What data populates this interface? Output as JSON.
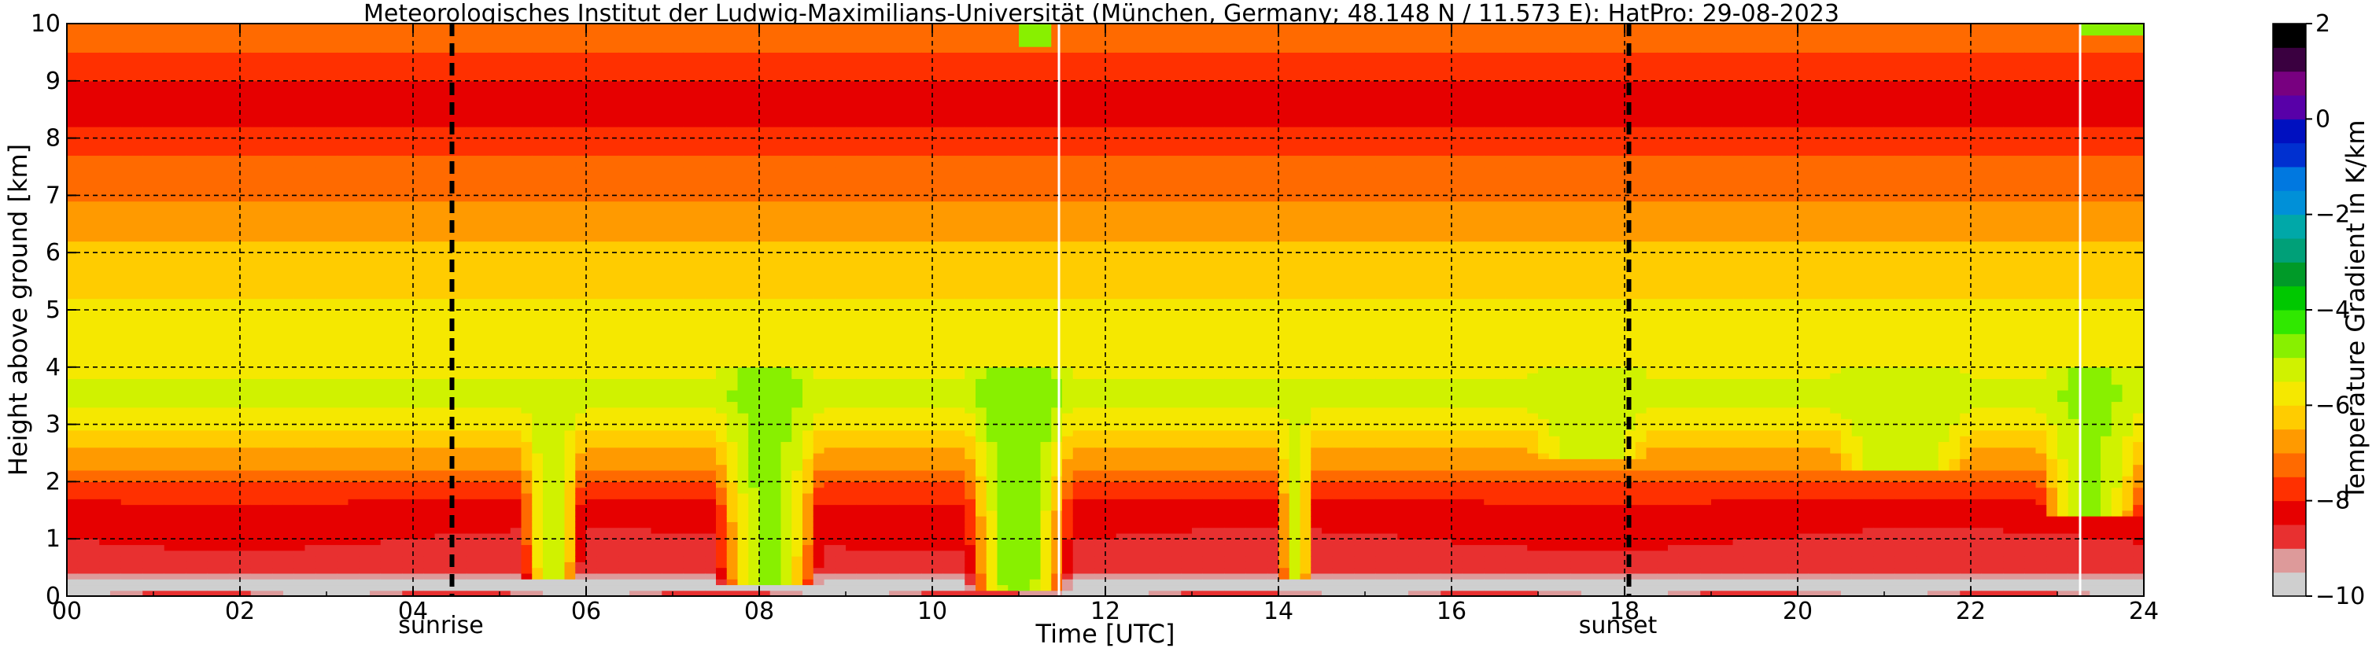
{
  "chart_data": {
    "type": "heatmap",
    "title": "Meteorologisches Institut der Ludwig-Maximilians-Universität (München, Germany; 48.148 N / 11.573 E):    HatPro: 29-08-2023",
    "xlabel": "Time [UTC]",
    "ylabel": "Height above ground [km]",
    "xlim": [
      0,
      24
    ],
    "ylim": [
      0,
      10
    ],
    "x_ticks": [
      0,
      2,
      4,
      6,
      8,
      10,
      12,
      14,
      16,
      18,
      20,
      22,
      24
    ],
    "x_tick_labels": [
      "00",
      "02",
      "04",
      "06",
      "08",
      "10",
      "12",
      "14",
      "16",
      "18",
      "20",
      "22",
      "24"
    ],
    "y_ticks": [
      0,
      1,
      2,
      3,
      4,
      5,
      6,
      7,
      8,
      9,
      10
    ],
    "y_tick_labels": [
      "0",
      "1",
      "2",
      "3",
      "4",
      "5",
      "6",
      "7",
      "8",
      "9",
      "10"
    ],
    "x_minor_ticks": [
      1,
      3,
      5,
      7,
      9,
      11,
      13,
      15,
      17,
      19,
      21,
      23
    ],
    "grid": true,
    "events": [
      {
        "label": "sunrise",
        "x": 4.45
      },
      {
        "label": "sunset",
        "x": 18.05
      }
    ],
    "colorbar": {
      "label": "Temperature Gradient in K/km",
      "min": -10,
      "max": 2,
      "ticks": [
        -10,
        -8,
        -6,
        -4,
        -2,
        0,
        2
      ],
      "tick_labels": [
        "−10",
        "−8",
        "−6",
        "−4",
        "−2",
        "0",
        "2"
      ],
      "levels": [
        {
          "from": -10.0,
          "to": -9.5,
          "color": "#cfcfcf"
        },
        {
          "from": -9.5,
          "to": -9.0,
          "color": "#dd9a9a"
        },
        {
          "from": -9.0,
          "to": -8.5,
          "color": "#e83030"
        },
        {
          "from": -8.5,
          "to": -8.0,
          "color": "#e60000"
        },
        {
          "from": -8.0,
          "to": -7.5,
          "color": "#ff3000"
        },
        {
          "from": -7.5,
          "to": -7.0,
          "color": "#ff6a00"
        },
        {
          "from": -7.0,
          "to": -6.5,
          "color": "#ff9a00"
        },
        {
          "from": -6.5,
          "to": -6.0,
          "color": "#ffcc00"
        },
        {
          "from": -6.0,
          "to": -5.5,
          "color": "#f5e800"
        },
        {
          "from": -5.5,
          "to": -5.0,
          "color": "#d0f200"
        },
        {
          "from": -5.0,
          "to": -4.5,
          "color": "#88f000"
        },
        {
          "from": -4.5,
          "to": -4.0,
          "color": "#30e800"
        },
        {
          "from": -4.0,
          "to": -3.5,
          "color": "#00c800"
        },
        {
          "from": -3.5,
          "to": -3.0,
          "color": "#009a28"
        },
        {
          "from": -3.0,
          "to": -2.5,
          "color": "#00a078"
        },
        {
          "from": -2.5,
          "to": -2.0,
          "color": "#00a8a8"
        },
        {
          "from": -2.0,
          "to": -1.5,
          "color": "#0090d8"
        },
        {
          "from": -1.5,
          "to": -1.0,
          "color": "#0078e0"
        },
        {
          "from": -1.0,
          "to": -0.5,
          "color": "#0030d0"
        },
        {
          "from": -0.5,
          "to": 0.0,
          "color": "#0010c0"
        },
        {
          "from": 0.0,
          "to": 0.5,
          "color": "#5800a8"
        },
        {
          "from": 0.5,
          "to": 1.0,
          "color": "#780080"
        },
        {
          "from": 1.0,
          "to": 1.5,
          "color": "#3a0040"
        },
        {
          "from": 1.5,
          "to": 2.0,
          "color": "#000000"
        }
      ]
    },
    "vertical_profile": [
      {
        "height": 0.0,
        "value": -8.4
      },
      {
        "height": 0.15,
        "value": -9.8
      },
      {
        "height": 0.3,
        "value": -9.6
      },
      {
        "height": 0.5,
        "value": -8.7
      },
      {
        "height": 1.0,
        "value": -8.5
      },
      {
        "height": 1.5,
        "value": -8.3
      },
      {
        "height": 1.9,
        "value": -7.6
      },
      {
        "height": 2.3,
        "value": -6.9
      },
      {
        "height": 2.8,
        "value": -6.2
      },
      {
        "height": 3.2,
        "value": -5.6
      },
      {
        "height": 3.5,
        "value": -5.1
      },
      {
        "height": 3.9,
        "value": -5.6
      },
      {
        "height": 4.5,
        "value": -5.9
      },
      {
        "height": 5.2,
        "value": -6.0
      },
      {
        "height": 6.0,
        "value": -6.3
      },
      {
        "height": 6.6,
        "value": -6.8
      },
      {
        "height": 7.2,
        "value": -7.2
      },
      {
        "height": 7.8,
        "value": -7.6
      },
      {
        "height": 8.3,
        "value": -8.1
      },
      {
        "height": 8.8,
        "value": -8.2
      },
      {
        "height": 9.3,
        "value": -7.7
      },
      {
        "height": 9.7,
        "value": -7.2
      },
      {
        "height": 10.0,
        "value": -7.0
      }
    ],
    "features": [
      {
        "kind": "strong-inversion-band",
        "x_range": [
          0.0,
          24.0
        ],
        "height_range": [
          0.0,
          0.35
        ],
        "value": -9.8
      },
      {
        "kind": "green-column",
        "x_center": 5.6,
        "half_width": 0.35,
        "height_range": [
          0.3,
          3.7
        ],
        "value": -5.2
      },
      {
        "kind": "green-column",
        "x_center": 8.1,
        "half_width": 0.6,
        "height_range": [
          0.2,
          4.0
        ],
        "value": -4.8
      },
      {
        "kind": "green-column",
        "x_center": 11.0,
        "half_width": 0.6,
        "height_range": [
          0.1,
          4.0
        ],
        "value": -4.5
      },
      {
        "kind": "green-column",
        "x_center": 14.2,
        "half_width": 0.2,
        "height_range": [
          0.3,
          3.8
        ],
        "value": -5.3
      },
      {
        "kind": "green-column",
        "x_center": 17.6,
        "half_width": 0.7,
        "height_range": [
          2.4,
          4.0
        ],
        "value": -5.1
      },
      {
        "kind": "green-column",
        "x_center": 21.2,
        "half_width": 0.8,
        "height_range": [
          2.2,
          4.0
        ],
        "value": -5.0
      },
      {
        "kind": "green-column",
        "x_center": 23.4,
        "half_width": 0.6,
        "height_range": [
          1.4,
          4.0
        ],
        "value": -4.9
      },
      {
        "kind": "green-top-right",
        "x_range": [
          23.3,
          24.0
        ],
        "height_range": [
          9.8,
          10.0
        ],
        "value": -4.6
      },
      {
        "kind": "green-top",
        "x_range": [
          11.0,
          11.4
        ],
        "height_range": [
          9.6,
          10.0
        ],
        "value": -4.8
      }
    ]
  }
}
